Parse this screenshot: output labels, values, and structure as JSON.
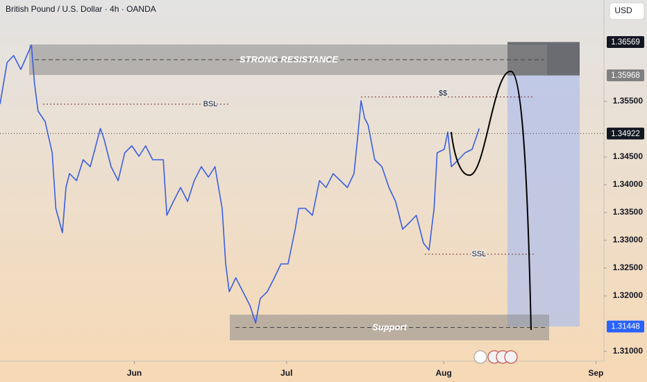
{
  "chart_data": {
    "type": "line",
    "title": "British Pound / U.S. Dollar · 4h · OANDA",
    "currency": "USD",
    "x": [
      4.5,
      5.9,
      7.2,
      8.6,
      10.7,
      11.3,
      12.0,
      13.4,
      14.8,
      15.5,
      16.8,
      17.5,
      18.2,
      19.6,
      20.9,
      22.3,
      24.3,
      25.0,
      26.4,
      27.8,
      29.1,
      30.5,
      31.9,
      33.2,
      34.6,
      36.7,
      37.4,
      38.7,
      40.1,
      41.5,
      42.8,
      44.2,
      45.6,
      46.9,
      48.3,
      49.0,
      49.7,
      51.0,
      52.4,
      53.8,
      54.9,
      55.8,
      57.2,
      58.6,
      59.9,
      61.3,
      62.7,
      63.4,
      64.7,
      66.1,
      67.5,
      68.8,
      70.2,
      71.6,
      73.0,
      74.3,
      75.0,
      75.7,
      76.4,
      77.1,
      78.4,
      79.8,
      81.2,
      82.5,
      83.9,
      85.3,
      86.6,
      88.0,
      89.1,
      90.1,
      90.7,
      92.1,
      92.8,
      93.5,
      94.9,
      96.2,
      97.6,
      99.0
    ],
    "values": [
      1.3545,
      1.362,
      1.36325,
      1.36075,
      1.36513,
      1.35825,
      1.35325,
      1.35138,
      1.34575,
      1.33575,
      1.33138,
      1.3395,
      1.342,
      1.34075,
      1.3445,
      1.34325,
      1.35013,
      1.34825,
      1.34325,
      1.34075,
      1.34575,
      1.347,
      1.34513,
      1.347,
      1.3445,
      1.3445,
      1.3345,
      1.337,
      1.3395,
      1.337,
      1.34075,
      1.34325,
      1.34138,
      1.34325,
      1.33575,
      1.32575,
      1.32075,
      1.32325,
      1.32075,
      1.31825,
      1.31513,
      1.3195,
      1.32075,
      1.32325,
      1.32575,
      1.32575,
      1.332,
      1.33575,
      1.33575,
      1.3345,
      1.34075,
      1.3395,
      1.342,
      1.34075,
      1.3395,
      1.342,
      1.34825,
      1.35513,
      1.352,
      1.35075,
      1.3445,
      1.34325,
      1.3395,
      1.337,
      1.332,
      1.33325,
      1.3345,
      1.3295,
      1.32825,
      1.33575,
      1.34575,
      1.34638,
      1.3495,
      1.34325,
      1.3445,
      1.34575,
      1.34638,
      1.35013
    ],
    "color": "#3a5ee0",
    "xlim": [
      4.5,
      122.5
    ],
    "xticks": [
      {
        "value": 31,
        "label": "Jun"
      },
      {
        "value": 61,
        "label": "Jul"
      },
      {
        "value": 92,
        "label": "Aug"
      },
      {
        "value": 122,
        "label": "Sep"
      }
    ],
    "ylim": [
      1.30825,
      1.37325
    ],
    "yticks": [
      {
        "value": 1.31,
        "label": "1.31000"
      },
      {
        "value": 1.32,
        "label": "1.32000"
      },
      {
        "value": 1.325,
        "label": "1.32500"
      },
      {
        "value": 1.33,
        "label": "1.33000"
      },
      {
        "value": 1.335,
        "label": "1.33500"
      },
      {
        "value": 1.34,
        "label": "1.34000"
      },
      {
        "value": 1.345,
        "label": "1.34500"
      },
      {
        "value": 1.355,
        "label": "1.35500"
      }
    ],
    "zones": [
      {
        "label": "STRONG RESISTANCE",
        "top": 1.36525,
        "bottom": 1.35975
      },
      {
        "label": "Support",
        "top": 1.31663,
        "bottom": 1.312
      }
    ],
    "levels": [
      {
        "label": "BSL",
        "value": 1.3545
      },
      {
        "label": "$$",
        "value": 1.3558
      },
      {
        "label": "SSL",
        "value": 1.3275
      }
    ],
    "price_labels": [
      {
        "value": 1.36569,
        "label": "1.36569"
      },
      {
        "value": 1.35968,
        "label": "1.35968"
      },
      {
        "value": 1.34922,
        "label": "1.34922"
      },
      {
        "value": 1.31448,
        "label": "1.31448"
      }
    ]
  }
}
